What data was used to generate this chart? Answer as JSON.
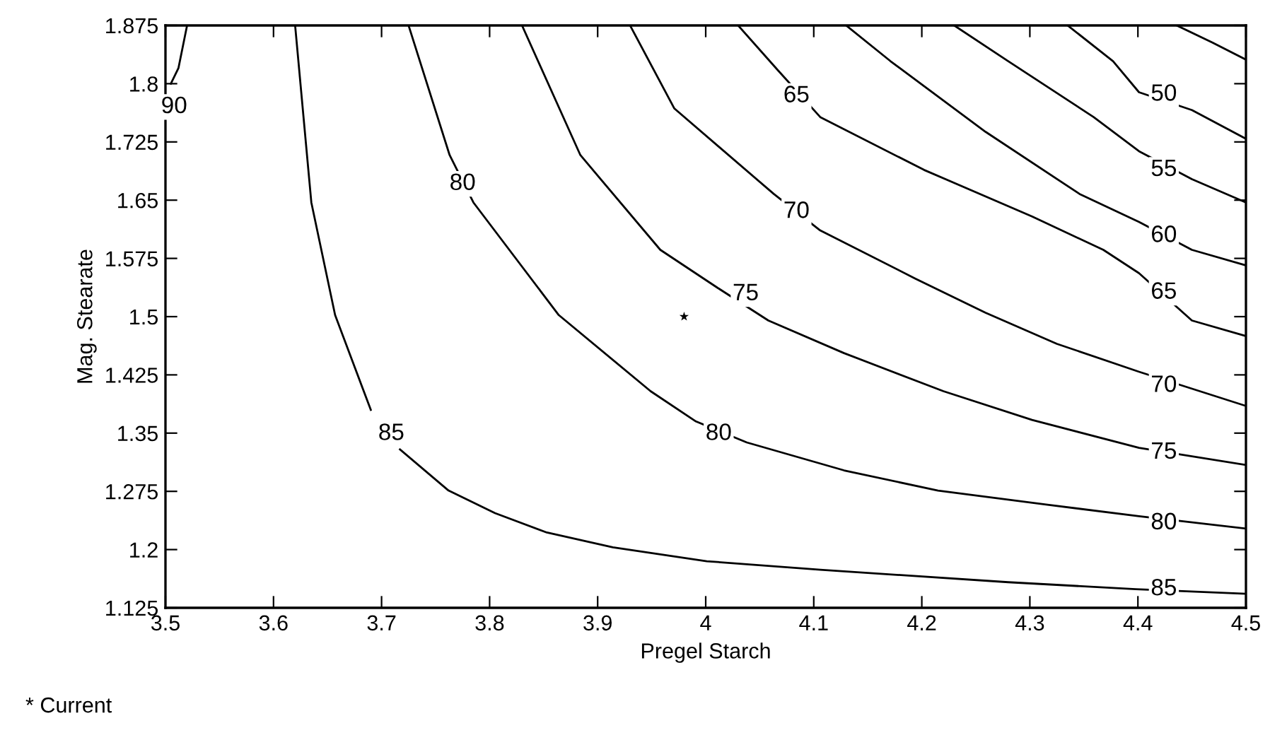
{
  "chart_data": {
    "type": "line",
    "xlabel": "Pregel Starch",
    "ylabel": "Mag. Stearate",
    "xlim": [
      3.5,
      4.5
    ],
    "ylim": [
      1.125,
      1.875
    ],
    "xticks": [
      3.5,
      3.6,
      3.7,
      3.8,
      3.9,
      4,
      4.1,
      4.2,
      4.3,
      4.4,
      4.5
    ],
    "yticks": [
      1.125,
      1.2,
      1.275,
      1.35,
      1.425,
      1.5,
      1.575,
      1.65,
      1.725,
      1.8,
      1.875
    ],
    "grid": false,
    "legend": false,
    "marker": "none",
    "line_style": "solid",
    "series": [
      {
        "color": "#000000",
        "x": [
          3.52,
          3.512,
          3.505
        ],
        "values": [
          1.875,
          1.82,
          1.8
        ]
      },
      {
        "color": "#000000",
        "x": [
          3.62,
          3.635,
          3.657,
          3.69,
          3.709,
          3.717,
          3.762,
          3.805,
          3.853,
          3.914,
          4.001,
          4.106,
          4.28,
          4.398,
          4.5
        ],
        "values": [
          1.875,
          1.647,
          1.502,
          1.38,
          null,
          1.329,
          1.276,
          1.247,
          1.222,
          1.203,
          1.185,
          1.174,
          1.158,
          1.149,
          1.143
        ]
      },
      {
        "color": "#000000",
        "x": [
          3.725,
          3.763,
          3.785,
          3.864,
          3.949,
          3.991,
          4.038,
          4.128,
          4.215,
          4.315,
          4.401,
          4.5
        ],
        "values": [
          1.875,
          1.708,
          1.647,
          1.502,
          1.404,
          1.365,
          1.338,
          1.302,
          1.276,
          1.258,
          1.243,
          1.227
        ]
      },
      {
        "color": "#000000",
        "x": [
          3.83,
          3.884,
          3.958,
          4.01,
          4.058,
          4.128,
          4.22,
          4.302,
          4.401,
          4.5
        ],
        "values": [
          1.875,
          1.708,
          1.586,
          1.538,
          1.495,
          1.453,
          1.404,
          1.367,
          1.331,
          1.309
        ]
      },
      {
        "color": "#000000",
        "x": [
          3.93,
          3.971,
          4.063,
          4.106,
          4.194,
          4.259,
          4.325,
          4.401,
          4.5
        ],
        "values": [
          1.875,
          1.768,
          1.658,
          1.611,
          1.549,
          1.505,
          1.465,
          1.429,
          1.385
        ]
      },
      {
        "color": "#000000",
        "x": [
          4.03,
          4.067,
          4.106,
          4.202,
          4.302,
          4.368,
          4.401,
          4.45,
          4.5
        ],
        "values": [
          1.875,
          1.817,
          1.757,
          1.689,
          1.629,
          1.586,
          1.556,
          1.495,
          1.475
        ]
      },
      {
        "color": "#000000",
        "x": [
          4.13,
          4.171,
          4.259,
          4.346,
          4.401,
          4.45,
          4.5
        ],
        "values": [
          1.875,
          1.829,
          1.738,
          1.658,
          1.622,
          1.586,
          1.566
        ]
      },
      {
        "color": "#000000",
        "x": [
          4.23,
          4.28,
          4.359,
          4.401,
          4.45,
          4.5
        ],
        "values": [
          1.875,
          1.829,
          1.757,
          1.713,
          1.677,
          1.647
        ]
      },
      {
        "color": "#000000",
        "x": [
          4.335,
          4.377,
          4.401,
          4.45,
          4.5
        ],
        "values": [
          1.875,
          1.829,
          1.789,
          1.766,
          1.729
        ]
      },
      {
        "color": "#000000",
        "x": [
          4.436,
          4.469,
          4.5
        ],
        "values": [
          1.875,
          1.853,
          1.831
        ]
      },
      {
        "type": "scatter",
        "marker": "star",
        "color": "#000000",
        "x": [
          3.98
        ],
        "values": [
          1.5
        ]
      }
    ],
    "annotations": [
      {
        "text": "90",
        "x": 3.508,
        "y": 1.77
      },
      {
        "text": "85",
        "x": 3.709,
        "y": 1.349
      },
      {
        "text": "85",
        "x": 4.424,
        "y": 1.149
      },
      {
        "text": "80",
        "x": 3.775,
        "y": 1.671
      },
      {
        "text": "80",
        "x": 4.012,
        "y": 1.349
      },
      {
        "text": "80",
        "x": 4.424,
        "y": 1.234
      },
      {
        "text": "75",
        "x": 4.037,
        "y": 1.529
      },
      {
        "text": "75",
        "x": 4.424,
        "y": 1.325
      },
      {
        "text": "70",
        "x": 4.084,
        "y": 1.635
      },
      {
        "text": "70",
        "x": 4.424,
        "y": 1.411
      },
      {
        "text": "65",
        "x": 4.084,
        "y": 1.784
      },
      {
        "text": "65",
        "x": 4.424,
        "y": 1.531
      },
      {
        "text": "60",
        "x": 4.424,
        "y": 1.604
      },
      {
        "text": "55",
        "x": 4.424,
        "y": 1.689
      },
      {
        "text": "50",
        "x": 4.424,
        "y": 1.786
      },
      "* Current"
    ]
  }
}
